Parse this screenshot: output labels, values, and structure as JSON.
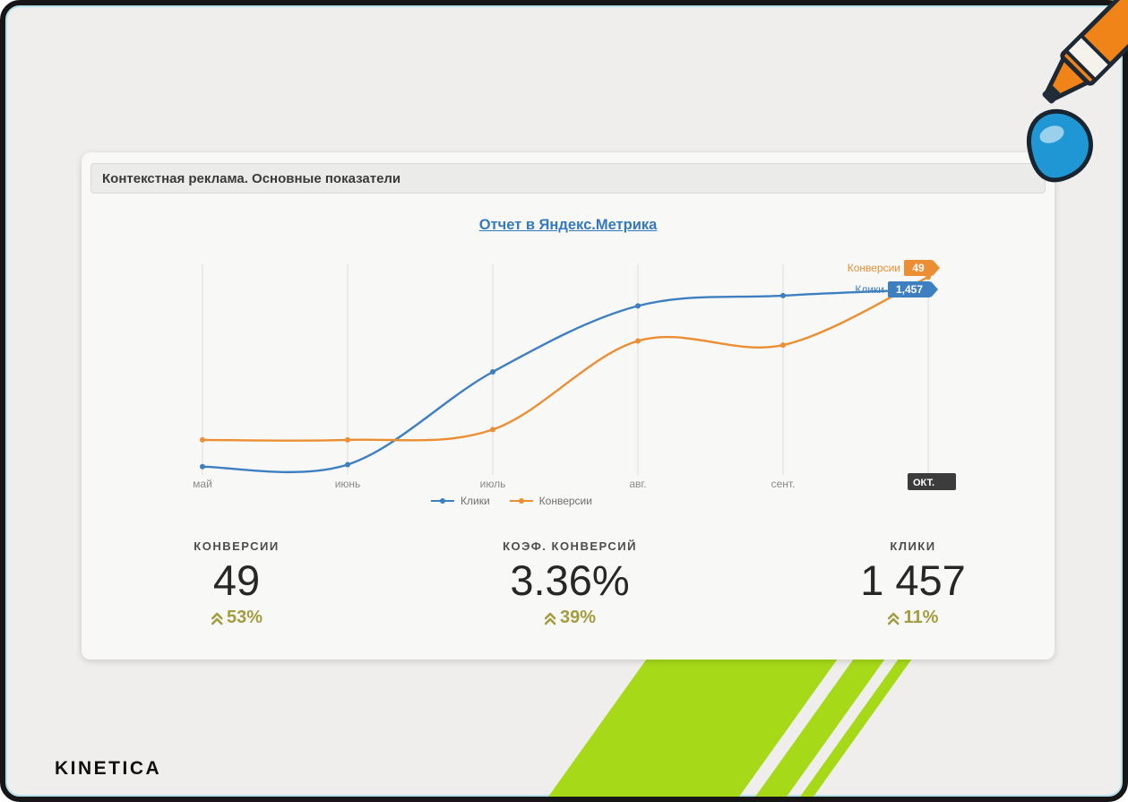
{
  "page": {
    "frame_background": "#efeeec",
    "border_color": "#161616",
    "accent_color": "#5bc8e6"
  },
  "brand": {
    "logo": "KINETICA"
  },
  "dashboard": {
    "header_title": "Контекстная реклама. Основные показатели",
    "report_link": "Отчет в Яндекс.Метрика"
  },
  "chart_data": {
    "type": "line",
    "title": "",
    "categories": [
      "май",
      "июнь",
      "июль",
      "авг.",
      "сент.",
      "окт."
    ],
    "series": [
      {
        "name": "Клики",
        "color": "#3d7fc1",
        "values": [
          4,
          5,
          50,
          82,
          87,
          90
        ],
        "end_label": "1,457"
      },
      {
        "name": "Конверсии",
        "color": "#ec8e33",
        "values": [
          17,
          17,
          22,
          65,
          63,
          96
        ],
        "end_label": "49"
      }
    ],
    "value_note": "relative curve height 0-100; no y-axis labels shown in source",
    "highlighted_tick": "ОКТ.",
    "legend_position": "bottom",
    "grid": "vertical-only",
    "colors": {
      "grid_line": "#dededc",
      "axis_label": "#8a8a88",
      "tooltip_bg": "#3c3c3c",
      "tooltip_text": "#ffffff"
    }
  },
  "kpis": [
    {
      "label": "КОНВЕРСИИ",
      "value": "49",
      "change": "53%",
      "direction": "up"
    },
    {
      "label": "КОЭФ. КОНВЕРСИЙ",
      "value": "3.36%",
      "change": "39%",
      "direction": "up"
    },
    {
      "label": "КЛИКИ",
      "value": "1 457",
      "change": "11%",
      "direction": "up"
    }
  ],
  "colors": {
    "kpi_change": "#a29d3f",
    "link": "#3579bd",
    "stripe_green": "#a6da19"
  }
}
